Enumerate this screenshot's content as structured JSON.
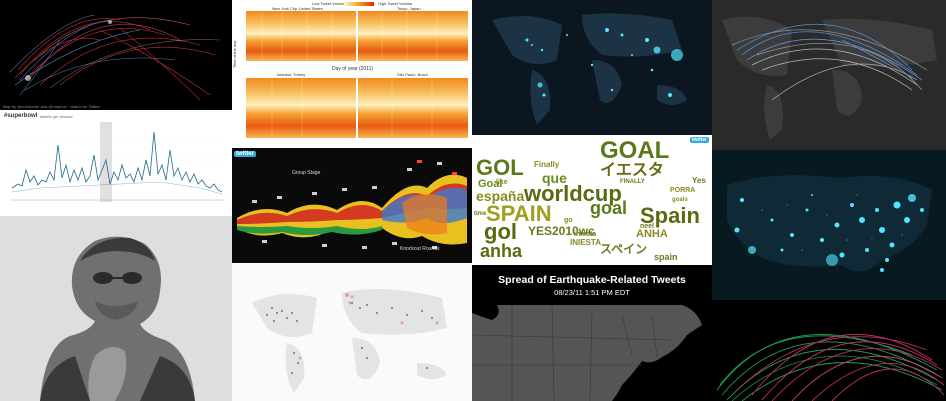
{
  "tiles": {
    "arcs1": {
      "caption": "Map by @ericfischer and @mapbox · data from Twitter"
    },
    "heatmap": {
      "legend": [
        "Low Tweet Volume",
        "High Tweet Volume"
      ],
      "panels": [
        "New York City, United States",
        "Tokyo, Japan",
        "Istanbul, Turkey",
        "São Paulo, Brazil"
      ],
      "ylabel": "Time of the day",
      "xlabel": "Day of year (2011)"
    },
    "superbowl": {
      "title": "#superbowl",
      "subtitle": "tweets per second"
    },
    "stream": {
      "badge": "twitter",
      "stage_left": "Group Stage",
      "stage_right": "Knockout Rounds"
    },
    "wordcloud": {
      "badge": "twitter",
      "words": [
        "GOAL",
        "GOL",
        "Finally",
        "que",
        "イエスタ",
        "worldcup",
        "españa",
        "Goal",
        "SPAIN",
        "goal",
        "Spain",
        "gol",
        "YES2010wc",
        "ANHA",
        "anha",
        "スペイン",
        "INIESTA",
        "spain",
        "FINALLY",
        "PORRA",
        "Yes",
        "goals",
        "like",
        "iniesta",
        "time",
        "go",
        "neel"
      ]
    },
    "quake": {
      "title": "Spread of Earthquake-Related Tweets",
      "time": "08/23/11 1:51 PM EDT"
    }
  },
  "colors": {
    "arc_red": "#ff3a50",
    "arc_blue": "#5aa8ff",
    "heat_orange": "#f07a1a",
    "heat_yellow": "#fde8a0",
    "night_cyan": "#4fe6ff",
    "arc_green": "#2fd06a",
    "arc_pink": "#ff3a8c",
    "cloud_green": "#5a7a1a",
    "cloud_olive": "#8a8a20"
  }
}
